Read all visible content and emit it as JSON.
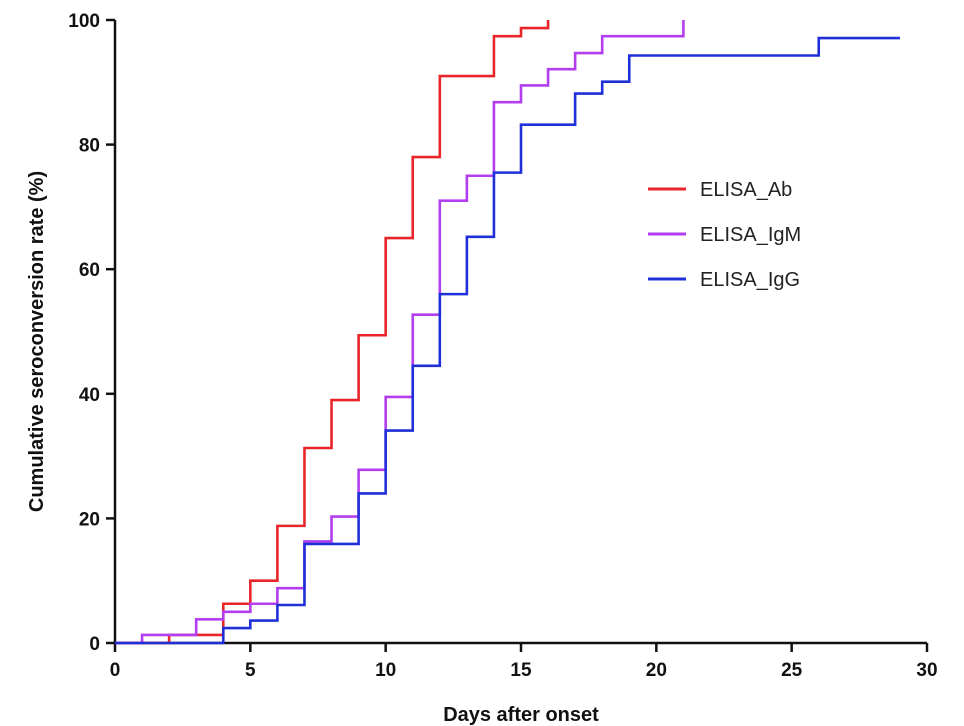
{
  "chart_data": {
    "type": "line",
    "step": true,
    "xlabel": "Days after onset",
    "ylabel": "Cumulative seroconversion rate (%)",
    "xlim": [
      0,
      30
    ],
    "ylim": [
      0,
      100
    ],
    "xticks": [
      0,
      5,
      10,
      15,
      20,
      25,
      30
    ],
    "yticks": [
      0,
      20,
      40,
      60,
      80,
      100
    ],
    "grid": false,
    "legend_position": "right-center",
    "series": [
      {
        "name": "ELISA_Ab",
        "color": "#e8262a",
        "x": [
          0,
          2,
          4,
          5,
          6,
          7,
          8,
          9,
          10,
          11,
          12,
          14,
          15,
          16
        ],
        "y": [
          0,
          1.3,
          6.3,
          10,
          18.8,
          31.3,
          39,
          49.4,
          65,
          78,
          91,
          97.4,
          98.7,
          100
        ]
      },
      {
        "name": "ELISA_IgM",
        "color": "#b33ef0",
        "x": [
          0,
          1,
          3,
          4,
          5,
          6,
          7,
          8,
          9,
          10,
          11,
          12,
          13,
          14,
          15,
          16,
          17,
          18,
          21
        ],
        "y": [
          0,
          1.3,
          3.8,
          5,
          6.3,
          8.8,
          16.3,
          20.3,
          27.8,
          39.5,
          52.7,
          71,
          75,
          86.8,
          89.5,
          92.1,
          94.7,
          97.4,
          100
        ]
      },
      {
        "name": "ELISA_IgG",
        "color": "#2030d8",
        "x": [
          0,
          4,
          5,
          6,
          7,
          9,
          10,
          11,
          12,
          13,
          14,
          15,
          17,
          18,
          19,
          26,
          29
        ],
        "y": [
          0,
          2.4,
          3.6,
          6.1,
          15.9,
          24,
          34.1,
          44.5,
          56,
          65.2,
          75.5,
          83.2,
          88.2,
          90.1,
          94.3,
          97.1,
          97.1
        ]
      }
    ]
  }
}
